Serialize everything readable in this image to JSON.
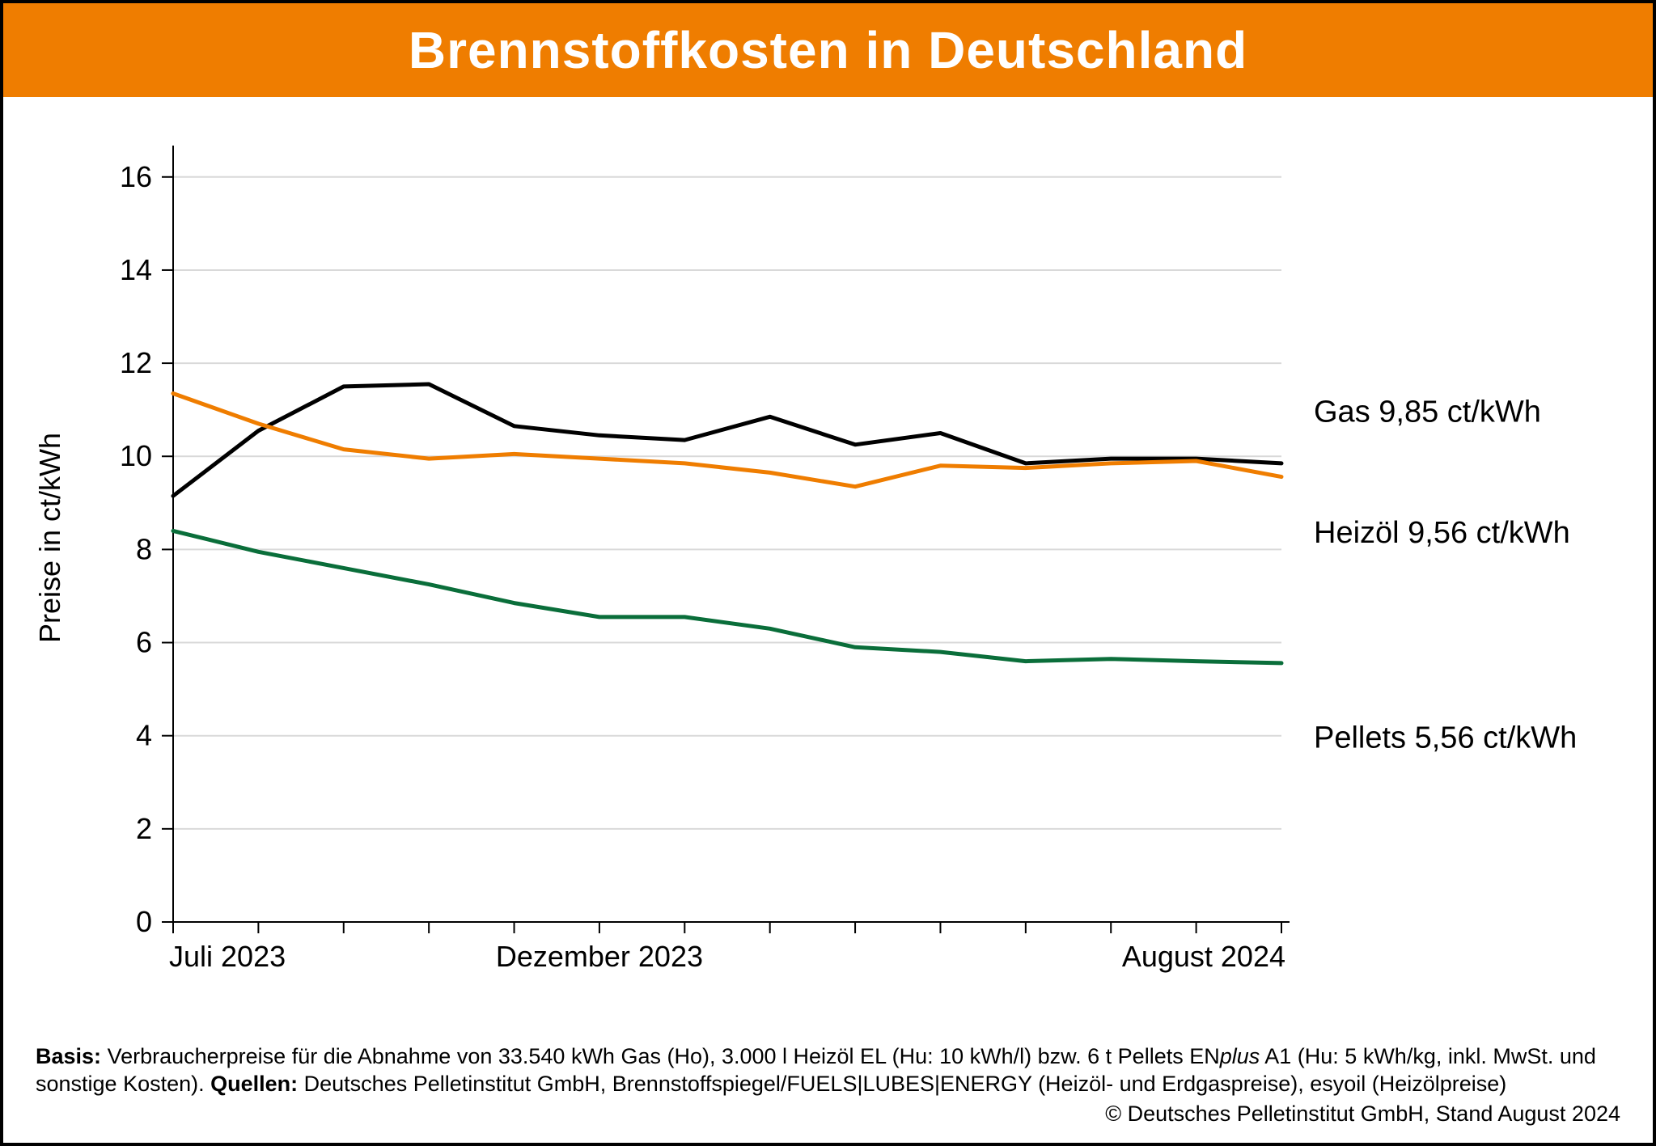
{
  "title": "Brennstoffkosten in Deutschland",
  "chart": {
    "type": "line",
    "ylabel": "Preise in ct/kWh",
    "label_fontsize": 36,
    "tick_fontsize": 36,
    "title_fontsize": 64,
    "background_color": "#ffffff",
    "grid_color": "#d9d9d9",
    "axis_color": "#000000",
    "title_bg": "#ef7d00",
    "title_color": "#ffffff",
    "ylim": [
      0,
      16.5
    ],
    "yticks": [
      0,
      2,
      4,
      6,
      8,
      10,
      12,
      14,
      16
    ],
    "x_count": 14,
    "x_tick_labels": {
      "0": "Juli 2023",
      "5": "Dezember 2023",
      "13": "August 2024"
    },
    "line_width": 5,
    "series": [
      {
        "name": "Gas",
        "color": "#000000",
        "values": [
          9.15,
          10.55,
          11.5,
          11.55,
          10.65,
          10.45,
          10.35,
          10.85,
          10.25,
          10.5,
          9.85,
          9.95,
          9.95,
          9.85
        ],
        "end_label": "Gas 9,85 ct/kWh",
        "end_label_y": 10.95
      },
      {
        "name": "Heizöl",
        "color": "#ef7d00",
        "values": [
          11.35,
          10.7,
          10.15,
          9.95,
          10.05,
          9.95,
          9.85,
          9.65,
          9.35,
          9.8,
          9.75,
          9.85,
          9.9,
          9.56
        ],
        "end_label": "Heizöl  9,56 ct/kWh",
        "end_label_y": 8.35
      },
      {
        "name": "Pellets",
        "color": "#0a6e3a",
        "values": [
          8.4,
          7.95,
          7.6,
          7.25,
          6.85,
          6.55,
          6.55,
          6.3,
          5.9,
          5.8,
          5.6,
          5.65,
          5.6,
          5.56
        ],
        "end_label": "Pellets  5,56 ct/kWh",
        "end_label_y": 3.95
      }
    ]
  },
  "footer": {
    "basis_label": "Basis:",
    "basis_text_1": "Verbraucherpreise für die Abnahme von 33.540 kWh Gas (Ho), 3.000 l Heizöl EL (Hu: 10 kWh/l) bzw. 6 t Pellets EN",
    "basis_text_italic": "plus",
    "basis_text_2": " A1 (Hu: 5 kWh/kg, inkl. MwSt. und sonstige Kosten). ",
    "quellen_label": "Quellen:",
    "quellen_text": " Deutsches Pelletinstitut GmbH, Brennstoffspiegel/FUELS|LUBES|ENERGY (Heizöl- und Erdgaspreise), esyoil (Heizölpreise)",
    "copyright": "© Deutsches Pelletinstitut GmbH, Stand August 2024"
  }
}
